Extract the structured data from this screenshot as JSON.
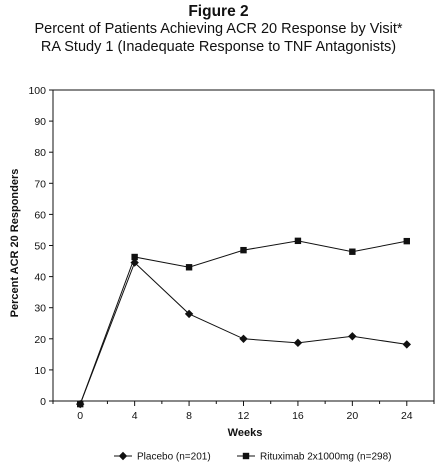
{
  "figure_label": "Figure 2",
  "chart_data": {
    "type": "line",
    "title_lines": [
      "Percent of Patients Achieving ACR 20 Response by Visit*",
      "RA Study 1 (Inadequate Response to TNF Antagonists)"
    ],
    "xlabel": "Weeks",
    "ylabel": "Percent ACR 20 Responders",
    "x": [
      0,
      4,
      8,
      12,
      16,
      20,
      24
    ],
    "xlim": [
      -2,
      26
    ],
    "ylim": [
      0,
      100
    ],
    "yticks": [
      0,
      10,
      20,
      30,
      40,
      50,
      60,
      70,
      80,
      90,
      100
    ],
    "xticks": [
      0,
      4,
      8,
      12,
      16,
      20,
      24
    ],
    "grid": false,
    "legend_position": "bottom",
    "series": [
      {
        "name": "Placebo (n=201)",
        "marker": "diamond",
        "color": "#111111",
        "values": [
          -1,
          44.5,
          28,
          20,
          18.7,
          20.8,
          18.2
        ]
      },
      {
        "name": "Rituximab 2x1000mg (n=298)",
        "marker": "square",
        "color": "#111111",
        "values": [
          -1,
          46.3,
          43,
          48.5,
          51.5,
          48,
          51.4
        ]
      }
    ]
  }
}
